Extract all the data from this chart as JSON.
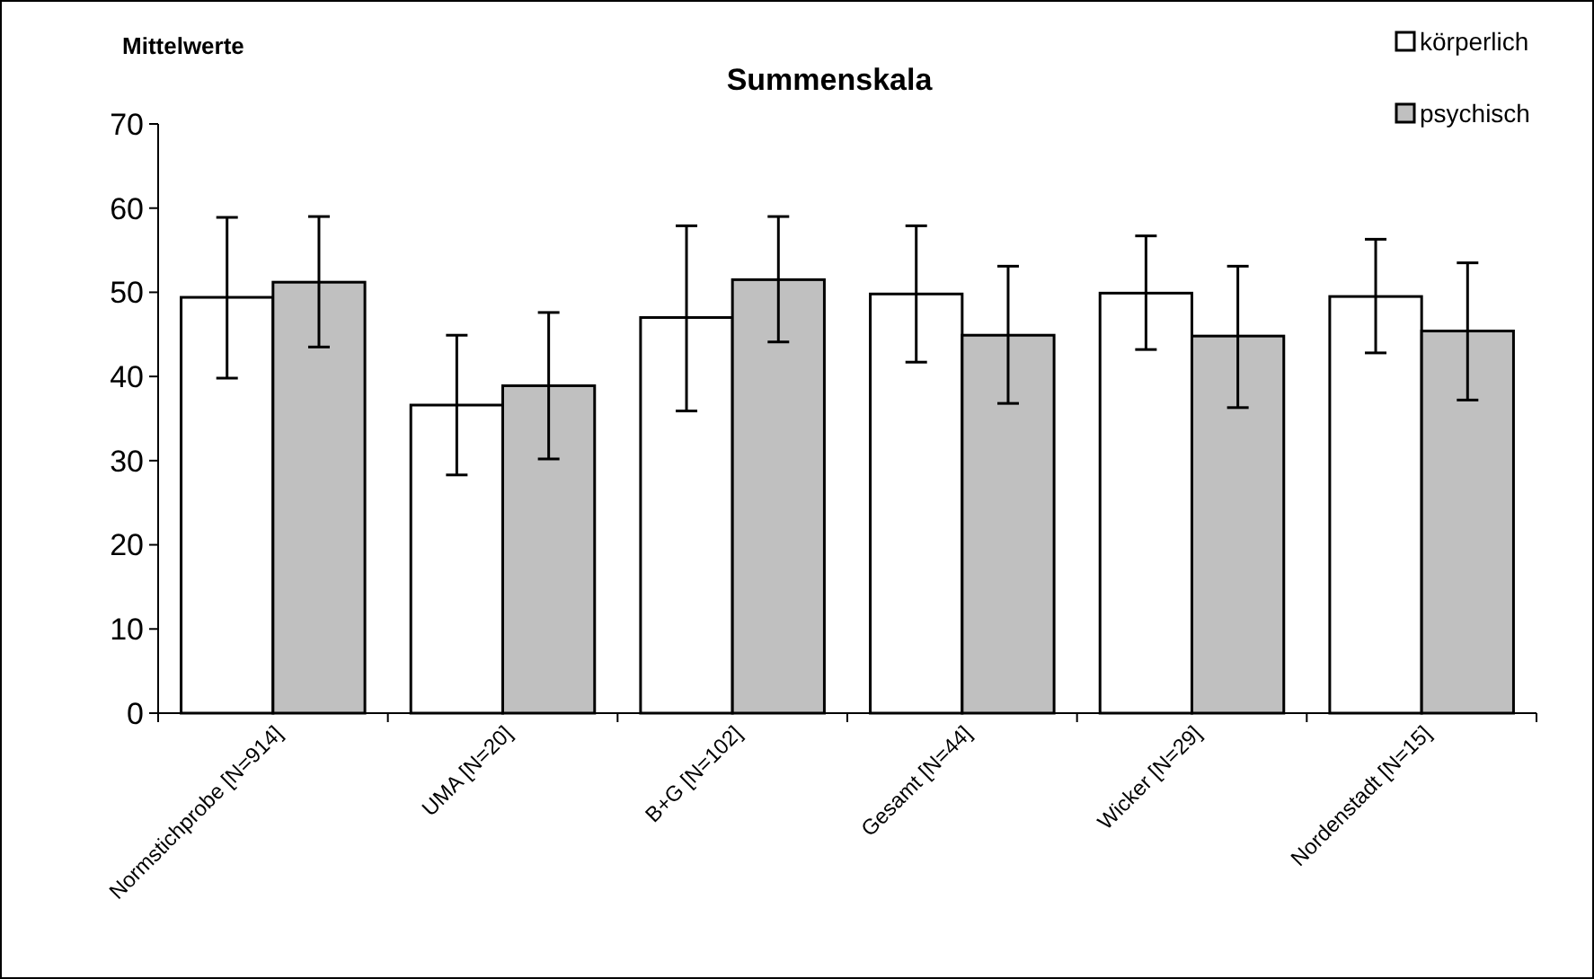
{
  "chart_data": {
    "type": "bar",
    "title": "Summenskala",
    "ylabel": "Mittelwerte",
    "categories": [
      "Normstichprobe [N=914]",
      "UMA [N=20]",
      "B+G [N=102]",
      "Gesamt [N=44]",
      "Wicker [N=29]",
      "Nordenstadt [N=15]"
    ],
    "series": [
      {
        "name": "körperlich",
        "color": "#ffffff",
        "values": [
          49.4,
          36.6,
          47.0,
          49.8,
          49.9,
          49.5
        ],
        "errors": [
          [
            39.8,
            58.9
          ],
          [
            28.3,
            44.9
          ],
          [
            35.9,
            57.9
          ],
          [
            41.7,
            57.9
          ],
          [
            43.2,
            56.7
          ],
          [
            42.8,
            56.3
          ]
        ]
      },
      {
        "name": "psychisch",
        "color": "#c0c0c0",
        "values": [
          51.2,
          38.9,
          51.5,
          44.9,
          44.8,
          45.4
        ],
        "errors": [
          [
            43.5,
            59.0
          ],
          [
            30.2,
            47.6
          ],
          [
            44.1,
            59.0
          ],
          [
            36.8,
            53.1
          ],
          [
            36.3,
            53.1
          ],
          [
            37.2,
            53.5
          ]
        ]
      }
    ],
    "ylim": [
      0,
      70
    ],
    "yticks": [
      0,
      10,
      20,
      30,
      40,
      50,
      60,
      70
    ],
    "grid": false,
    "legend": "top right"
  }
}
